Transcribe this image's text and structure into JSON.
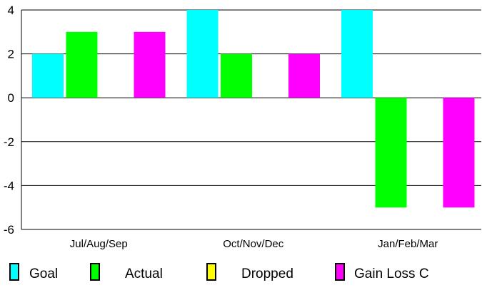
{
  "chart_data": {
    "type": "bar",
    "title": "",
    "xlabel": "",
    "ylabel": "",
    "categories": [
      "Jul/Aug/Sep",
      "Oct/Nov/Dec",
      "Jan/Feb/Mar"
    ],
    "series": [
      {
        "name": "Goal",
        "color": "#00ffff",
        "values": [
          2,
          4,
          4
        ]
      },
      {
        "name": "Actual",
        "color": "#00ff00",
        "values": [
          3,
          2,
          -5
        ]
      },
      {
        "name": "Dropped",
        "color": "#ffff00",
        "values": [
          0,
          0,
          0
        ]
      },
      {
        "name": "Gain Loss C",
        "color": "#ff00ff",
        "values": [
          3,
          2,
          -5
        ]
      }
    ],
    "ylim": [
      -6,
      4
    ],
    "yticks": [
      4,
      2,
      0,
      -2,
      -4,
      -6
    ],
    "ytick_labels": [
      "4",
      "2",
      "0",
      "-2",
      "-4",
      "-6"
    ],
    "grid": "horizontal",
    "legend": "bottom"
  }
}
